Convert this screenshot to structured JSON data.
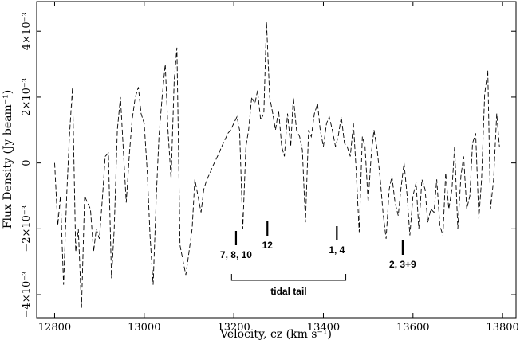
{
  "chart_data": {
    "type": "line",
    "xlabel": "Velocity, cz (km s⁻¹)",
    "ylabel": "Flux Density (Jy beam⁻¹)",
    "xlim": [
      12760,
      13830
    ],
    "ylim": [
      -0.0047,
      0.0049
    ],
    "x_ticks": [
      12800,
      13000,
      13200,
      13400,
      13600,
      13800
    ],
    "x_tick_labels": [
      "12800",
      "13000",
      "13200",
      "13400",
      "13600",
      "13800"
    ],
    "y_ticks": [
      -0.004,
      -0.002,
      0,
      0.002,
      0.004
    ],
    "y_tick_labels": [
      "−4×10⁻³",
      "−2×10⁻³",
      "0",
      "2×10⁻³",
      "4×10⁻³"
    ],
    "line_style": "dashed",
    "series": [
      {
        "x": [
          12800,
          12807,
          12813,
          12820,
          12827,
          12833,
          12840,
          12847,
          12853,
          12860,
          12867,
          12873,
          12880,
          12887,
          12893,
          12900,
          12907,
          12913,
          12920,
          12927,
          12933,
          12940,
          12947,
          12953,
          12960,
          12967,
          12973,
          12980,
          12987,
          12993,
          13000,
          13007,
          13013,
          13020,
          13027,
          13033,
          13040,
          13047,
          13053,
          13060,
          13067,
          13073,
          13080,
          13087,
          13093,
          13100,
          13107,
          13113,
          13120,
          13127,
          13133,
          13140,
          13147,
          13153,
          13160,
          13167,
          13173,
          13180,
          13187,
          13193,
          13200,
          13207,
          13213,
          13220,
          13227,
          13233,
          13240,
          13247,
          13253,
          13260,
          13267,
          13273,
          13280,
          13287,
          13293,
          13300,
          13307,
          13313,
          13320,
          13327,
          13333,
          13340,
          13347,
          13353,
          13360,
          13367,
          13373,
          13380,
          13387,
          13393,
          13400,
          13407,
          13413,
          13420,
          13427,
          13433,
          13440,
          13447,
          13453,
          13460,
          13467,
          13473,
          13480,
          13487,
          13493,
          13500,
          13507,
          13513,
          13520,
          13527,
          13533,
          13540,
          13547,
          13553,
          13560,
          13567,
          13573,
          13580,
          13587,
          13593,
          13600,
          13607,
          13613,
          13620,
          13627,
          13633,
          13640,
          13647,
          13653,
          13660,
          13667,
          13673,
          13680,
          13687,
          13693,
          13700,
          13707,
          13713,
          13720,
          13727,
          13733,
          13740,
          13747,
          13753,
          13760,
          13767,
          13773,
          13780,
          13787,
          13793
        ],
        "y": [
          0.0,
          -0.0019,
          -0.001,
          -0.0037,
          -0.001,
          0.0008,
          0.0023,
          -0.0027,
          -0.002,
          -0.0044,
          -0.001,
          -0.0012,
          -0.0014,
          -0.0027,
          -0.002,
          -0.0023,
          -0.001,
          0.0002,
          0.0003,
          -0.0035,
          -0.002,
          0.001,
          0.002,
          0.0005,
          -0.0012,
          0.0003,
          0.0013,
          0.002,
          0.0023,
          0.0015,
          0.0012,
          -0.0003,
          -0.0022,
          -0.0037,
          -0.001,
          0.0008,
          0.002,
          0.003,
          0.001,
          -0.0005,
          0.0025,
          0.0035,
          -0.0025,
          -0.003,
          -0.0034,
          -0.0027,
          -0.002,
          -0.0005,
          -0.001,
          -0.0015,
          -0.0008,
          -0.0005,
          -0.0003,
          -0.0001,
          0.0001,
          0.0003,
          0.0005,
          0.0007,
          0.0009,
          0.001,
          0.0012,
          0.0014,
          0.001,
          -0.002,
          0.0005,
          0.001,
          0.002,
          0.0018,
          0.0022,
          0.0013,
          0.0015,
          0.0043,
          0.002,
          0.0015,
          0.001,
          0.0016,
          0.0005,
          0.0002,
          0.0015,
          0.0005,
          0.002,
          0.001,
          0.0008,
          0.0004,
          -0.0018,
          0.001,
          0.0008,
          0.0015,
          0.0018,
          0.001,
          0.0005,
          0.0012,
          0.0014,
          0.001,
          0.0005,
          0.0008,
          0.0014,
          0.0006,
          0.0005,
          0.0002,
          0.0012,
          -0.0002,
          -0.0021,
          0.0008,
          0.0005,
          -0.0012,
          0.0003,
          0.001,
          0.0004,
          -0.0005,
          -0.0015,
          -0.0023,
          -0.0008,
          -0.0004,
          -0.0012,
          -0.0016,
          -0.0008,
          0.0,
          -0.001,
          -0.0022,
          -0.001,
          -0.0006,
          -0.002,
          -0.0005,
          -0.0008,
          -0.0018,
          -0.0014,
          -0.0015,
          -0.0005,
          -0.0019,
          -0.0022,
          -0.0003,
          -0.0014,
          -0.0008,
          0.0005,
          -0.002,
          -0.0004,
          0.0002,
          -0.0014,
          -0.001,
          0.0006,
          0.0009,
          -0.0017,
          -0.0005,
          0.0021,
          0.0028,
          -0.0014,
          -0.0005,
          0.0015,
          0.0005
        ]
      }
    ],
    "markers": [
      {
        "label": "7, 8, 10",
        "velocity": 13205
      },
      {
        "label": "12",
        "velocity": 13275
      },
      {
        "label": "1, 4",
        "velocity": 13430
      },
      {
        "label": "2, 3+9",
        "velocity": 13577
      }
    ],
    "bracket": {
      "label": "tidal tail",
      "from": 13195,
      "to": 13450
    }
  }
}
